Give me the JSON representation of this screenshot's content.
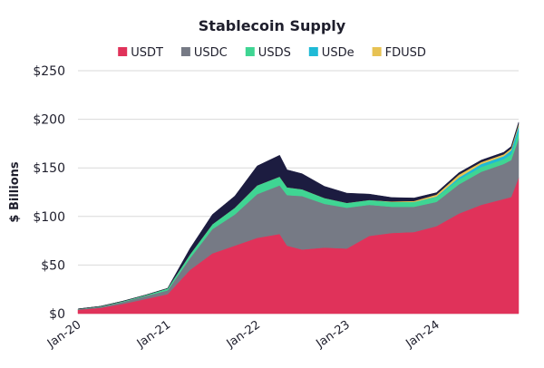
{
  "chart_data": {
    "type": "area",
    "stacked": true,
    "title": "Stablecoin Supply",
    "xlabel": "",
    "ylabel": "$ Billions",
    "ylim": [
      0,
      250
    ],
    "yticks": [
      0,
      50,
      100,
      150,
      200,
      250
    ],
    "ytick_labels": [
      "$0",
      "$50",
      "$100",
      "$150",
      "$200",
      "$250"
    ],
    "xticks": [
      "Jan-20",
      "Jan-21",
      "Jan-22",
      "Jan-23",
      "Jan-24"
    ],
    "x_range": [
      "2020-01",
      "2024-12"
    ],
    "grid": "horizontal",
    "legend_position": "top",
    "x": [
      "2020-01",
      "2020-04",
      "2020-07",
      "2020-10",
      "2021-01",
      "2021-04",
      "2021-07",
      "2021-10",
      "2022-01",
      "2022-04",
      "2022-05",
      "2022-07",
      "2022-10",
      "2023-01",
      "2023-04",
      "2023-07",
      "2023-10",
      "2024-01",
      "2024-04",
      "2024-07",
      "2024-10",
      "2024-11",
      "2024-12"
    ],
    "series": [
      {
        "name": "USDT",
        "color": "#e0325a",
        "values": [
          4,
          6,
          10,
          15,
          20,
          45,
          62,
          70,
          78,
          82,
          70,
          66,
          68,
          67,
          80,
          83,
          84,
          90,
          103,
          112,
          118,
          120,
          140
        ]
      },
      {
        "name": "USDC",
        "color": "#767a85",
        "values": [
          0.5,
          1,
          2,
          3,
          4,
          12,
          25,
          32,
          45,
          50,
          52,
          55,
          45,
          42,
          32,
          27,
          26,
          25,
          30,
          34,
          36,
          38,
          40
        ]
      },
      {
        "name": "USDS",
        "color": "#3fd593",
        "values": [
          0.3,
          0.5,
          0.8,
          1,
          2,
          4,
          5,
          7,
          9,
          9,
          8,
          7,
          6,
          5,
          5,
          5,
          5,
          5,
          5,
          5,
          5,
          6,
          7
        ]
      },
      {
        "name": "USDe",
        "color": "#1fbad6",
        "values": [
          0,
          0,
          0,
          0,
          0,
          0,
          0,
          0,
          0,
          0,
          0,
          0,
          0,
          0,
          0,
          0,
          0,
          0.5,
          2,
          3,
          3,
          4,
          6
        ]
      },
      {
        "name": "FDUSD",
        "color": "#e7c253",
        "values": [
          0,
          0,
          0,
          0,
          0,
          0,
          0,
          0,
          0,
          0,
          0,
          0,
          0,
          0,
          0,
          0.5,
          1,
          2,
          3,
          2,
          2,
          2,
          2
        ]
      },
      {
        "name": "",
        "color": "#1c1c40",
        "values": [
          0,
          0,
          0,
          0,
          0,
          6,
          10,
          12,
          20,
          22,
          18,
          16,
          12,
          10,
          6,
          4,
          3,
          2,
          2,
          2,
          2,
          2,
          2
        ]
      }
    ]
  }
}
